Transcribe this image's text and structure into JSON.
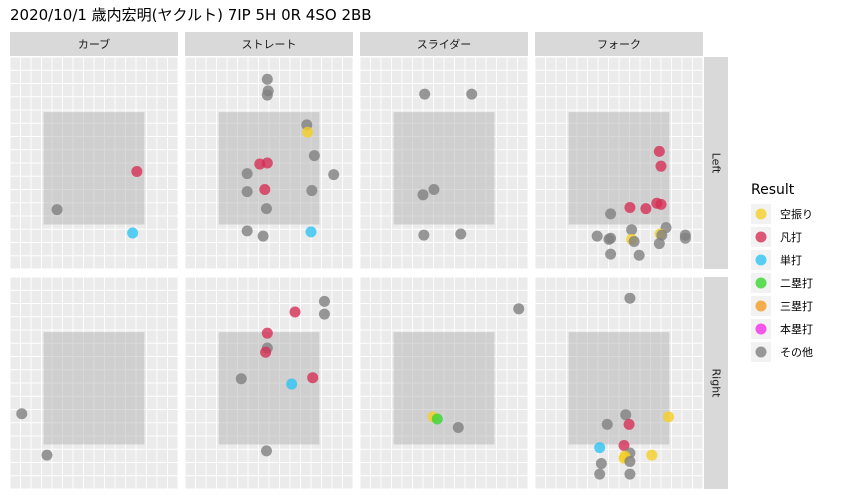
{
  "chart_data": {
    "type": "scatter",
    "title": "2020/10/1 歳内宏明(ヤクルト) 7IP 5H 0R 4SO 2BB",
    "columns": [
      "カーブ",
      "ストレート",
      "スライダー",
      "フォーク"
    ],
    "rows": [
      "Left",
      "Right"
    ],
    "xlim": [
      -1.0,
      1.0
    ],
    "ylim": [
      0.0,
      2.0
    ],
    "grid": true,
    "zone": {
      "x": [
        -0.6,
        0.6
      ],
      "y": [
        0.42,
        1.48
      ]
    },
    "legend": {
      "title": "Result",
      "position": "right",
      "items": [
        {
          "key": "kuufuri",
          "label": "空振り",
          "color": "#F5CE25"
        },
        {
          "key": "bonda",
          "label": "凡打",
          "color": "#D62E55"
        },
        {
          "key": "tanda",
          "label": "単打",
          "color": "#2EC3F2"
        },
        {
          "key": "niruida",
          "label": "二塁打",
          "color": "#36D630"
        },
        {
          "key": "sanruida",
          "label": "三塁打",
          "color": "#F29B1F"
        },
        {
          "key": "honruida",
          "label": "本塁打",
          "color": "#F22EE6"
        },
        {
          "key": "sonota",
          "label": "その他",
          "color": "#808080"
        }
      ]
    },
    "panels": [
      {
        "row": "Left",
        "column": "カーブ",
        "points": [
          {
            "x": 0.51,
            "y": 0.92,
            "result": "bonda"
          },
          {
            "x": -0.44,
            "y": 0.56,
            "result": "sonota"
          },
          {
            "x": 0.46,
            "y": 0.34,
            "result": "tanda"
          }
        ]
      },
      {
        "row": "Left",
        "column": "ストレート",
        "points": [
          {
            "x": -0.02,
            "y": 1.79,
            "result": "sonota"
          },
          {
            "x": -0.01,
            "y": 1.68,
            "result": "sonota"
          },
          {
            "x": -0.02,
            "y": 1.64,
            "result": "sonota"
          },
          {
            "x": 0.45,
            "y": 1.36,
            "result": "sonota"
          },
          {
            "x": 0.46,
            "y": 1.29,
            "result": "kuufuri"
          },
          {
            "x": 0.54,
            "y": 1.07,
            "result": "sonota"
          },
          {
            "x": -0.11,
            "y": 0.99,
            "result": "bonda"
          },
          {
            "x": -0.02,
            "y": 1.0,
            "result": "bonda"
          },
          {
            "x": -0.26,
            "y": 0.9,
            "result": "sonota"
          },
          {
            "x": 0.77,
            "y": 0.89,
            "result": "sonota"
          },
          {
            "x": -0.26,
            "y": 0.73,
            "result": "sonota"
          },
          {
            "x": -0.05,
            "y": 0.75,
            "result": "bonda"
          },
          {
            "x": 0.51,
            "y": 0.74,
            "result": "sonota"
          },
          {
            "x": -0.03,
            "y": 0.57,
            "result": "sonota"
          },
          {
            "x": -0.26,
            "y": 0.36,
            "result": "sonota"
          },
          {
            "x": -0.07,
            "y": 0.31,
            "result": "sonota"
          },
          {
            "x": 0.5,
            "y": 0.35,
            "result": "tanda"
          }
        ]
      },
      {
        "row": "Left",
        "column": "スライダー",
        "points": [
          {
            "x": -0.23,
            "y": 1.65,
            "result": "sonota"
          },
          {
            "x": 0.33,
            "y": 1.65,
            "result": "sonota"
          },
          {
            "x": -0.12,
            "y": 0.75,
            "result": "sonota"
          },
          {
            "x": -0.25,
            "y": 0.7,
            "result": "sonota"
          },
          {
            "x": -0.24,
            "y": 0.32,
            "result": "sonota"
          },
          {
            "x": 0.2,
            "y": 0.33,
            "result": "sonota"
          }
        ]
      },
      {
        "row": "Left",
        "column": "フォーク",
        "points": [
          {
            "x": 0.48,
            "y": 1.11,
            "result": "bonda"
          },
          {
            "x": 0.5,
            "y": 0.97,
            "result": "bonda"
          },
          {
            "x": 0.45,
            "y": 0.62,
            "result": "bonda"
          },
          {
            "x": 0.5,
            "y": 0.61,
            "result": "bonda"
          },
          {
            "x": 0.13,
            "y": 0.58,
            "result": "bonda"
          },
          {
            "x": 0.32,
            "y": 0.57,
            "result": "bonda"
          },
          {
            "x": -0.1,
            "y": 0.52,
            "result": "sonota"
          },
          {
            "x": 0.15,
            "y": 0.37,
            "result": "sonota"
          },
          {
            "x": 0.56,
            "y": 0.39,
            "result": "sonota"
          },
          {
            "x": 0.49,
            "y": 0.33,
            "result": "kuufuri"
          },
          {
            "x": 0.51,
            "y": 0.32,
            "result": "sonota"
          },
          {
            "x": 0.79,
            "y": 0.32,
            "result": "sonota"
          },
          {
            "x": 0.79,
            "y": 0.29,
            "result": "sonota"
          },
          {
            "x": 0.15,
            "y": 0.28,
            "result": "kuufuri"
          },
          {
            "x": 0.18,
            "y": 0.26,
            "result": "sonota"
          },
          {
            "x": -0.26,
            "y": 0.31,
            "result": "sonota"
          },
          {
            "x": -0.1,
            "y": 0.29,
            "result": "sonota"
          },
          {
            "x": -0.12,
            "y": 0.28,
            "result": "sonota"
          },
          {
            "x": 0.48,
            "y": 0.24,
            "result": "sonota"
          },
          {
            "x": -0.1,
            "y": 0.14,
            "result": "sonota"
          },
          {
            "x": 0.24,
            "y": 0.13,
            "result": "sonota"
          }
        ]
      },
      {
        "row": "Right",
        "column": "カーブ",
        "points": [
          {
            "x": -0.86,
            "y": 0.71,
            "result": "sonota"
          },
          {
            "x": -0.56,
            "y": 0.32,
            "result": "sonota"
          }
        ]
      },
      {
        "row": "Right",
        "column": "ストレート",
        "points": [
          {
            "x": 0.66,
            "y": 1.77,
            "result": "sonota"
          },
          {
            "x": 0.66,
            "y": 1.65,
            "result": "sonota"
          },
          {
            "x": 0.31,
            "y": 1.67,
            "result": "bonda"
          },
          {
            "x": -0.02,
            "y": 1.47,
            "result": "bonda"
          },
          {
            "x": -0.02,
            "y": 1.33,
            "result": "sonota"
          },
          {
            "x": -0.04,
            "y": 1.29,
            "result": "bonda"
          },
          {
            "x": 0.52,
            "y": 1.05,
            "result": "bonda"
          },
          {
            "x": -0.33,
            "y": 1.04,
            "result": "sonota"
          },
          {
            "x": 0.27,
            "y": 0.99,
            "result": "tanda"
          },
          {
            "x": -0.03,
            "y": 0.36,
            "result": "sonota"
          }
        ]
      },
      {
        "row": "Right",
        "column": "スライダー",
        "points": [
          {
            "x": 0.89,
            "y": 1.7,
            "result": "sonota"
          },
          {
            "x": -0.13,
            "y": 0.68,
            "result": "kuufuri"
          },
          {
            "x": -0.08,
            "y": 0.66,
            "result": "niruida"
          },
          {
            "x": 0.17,
            "y": 0.58,
            "result": "sonota"
          }
        ]
      },
      {
        "row": "Right",
        "column": "フォーク",
        "points": [
          {
            "x": 0.13,
            "y": 1.8,
            "result": "sonota"
          },
          {
            "x": 0.08,
            "y": 0.7,
            "result": "sonota"
          },
          {
            "x": 0.59,
            "y": 0.68,
            "result": "kuufuri"
          },
          {
            "x": -0.14,
            "y": 0.61,
            "result": "sonota"
          },
          {
            "x": 0.12,
            "y": 0.61,
            "result": "bonda"
          },
          {
            "x": 0.06,
            "y": 0.41,
            "result": "bonda"
          },
          {
            "x": -0.23,
            "y": 0.39,
            "result": "tanda"
          },
          {
            "x": 0.13,
            "y": 0.34,
            "result": "sonota"
          },
          {
            "x": 0.07,
            "y": 0.31,
            "result": "kuufuri"
          },
          {
            "x": 0.06,
            "y": 0.29,
            "result": "kuufuri"
          },
          {
            "x": 0.39,
            "y": 0.32,
            "result": "kuufuri"
          },
          {
            "x": 0.13,
            "y": 0.26,
            "result": "sonota"
          },
          {
            "x": -0.21,
            "y": 0.24,
            "result": "sonota"
          },
          {
            "x": -0.23,
            "y": 0.14,
            "result": "sonota"
          },
          {
            "x": 0.13,
            "y": 0.14,
            "result": "sonota"
          }
        ]
      }
    ]
  }
}
